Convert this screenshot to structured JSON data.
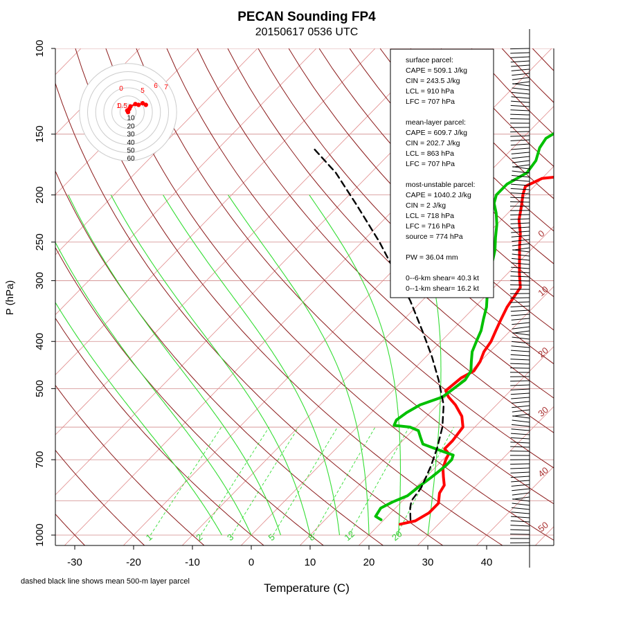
{
  "chart_data": {
    "type": "line",
    "title": "PECAN Sounding FP4",
    "subtitle": "20150617 0536 UTC",
    "xlabel": "Temperature (C)",
    "ylabel": "P (hPa)",
    "footnote": "dashed black line shows mean 500-m layer parcel",
    "xlim": [
      -35,
      45
    ],
    "ylim_hpa": [
      1050,
      100
    ],
    "log_pressure_axis": true,
    "x_ticks": [
      "-30",
      "-20",
      "-10",
      "0",
      "10",
      "20",
      "30",
      "40"
    ],
    "x_tick_values": [
      -30,
      -20,
      -10,
      0,
      10,
      20,
      30,
      40
    ],
    "y_ticks": [
      "100",
      "150",
      "200",
      "250",
      "300",
      "400",
      "500",
      "700",
      "1000"
    ],
    "y_tick_values": [
      100,
      150,
      200,
      250,
      300,
      400,
      500,
      700,
      1000
    ],
    "grid": true,
    "isotherm_labels": [
      "0",
      "10",
      "20",
      "30",
      "40",
      "50"
    ],
    "isotherm_label_values": [
      0,
      10,
      20,
      30,
      40,
      50
    ],
    "mixing_ratio_labels": [
      "1",
      "2",
      "3",
      "5",
      "8",
      "12",
      "20"
    ],
    "mixing_ratio_label_values": [
      1,
      2,
      3,
      5,
      8,
      12,
      20
    ],
    "hodograph": {
      "ring_labels": [
        "10",
        "20",
        "30",
        "40",
        "50",
        "60"
      ],
      "ring_values": [
        10,
        20,
        30,
        40,
        50,
        60
      ],
      "point_labels": [
        "0",
        "1",
        "5",
        "6",
        "7",
        "0.5"
      ],
      "points_kt": [
        [
          0,
          0
        ],
        [
          -1,
          2
        ],
        [
          1.5,
          4
        ],
        [
          3,
          7
        ],
        [
          9,
          10
        ],
        [
          13,
          9
        ],
        [
          18,
          11
        ],
        [
          22,
          9
        ]
      ]
    },
    "info_box": [
      "surface parcel:",
      "CAPE = 509.1 J/kg",
      "CIN = 243.5 J/kg",
      "LCL = 910 hPa",
      "LFC = 707 hPa",
      "",
      "mean-layer parcel:",
      "CAPE = 609.7 J/kg",
      "CIN = 202.7 J/kg",
      "LCL = 863 hPa",
      "LFC = 707 hPa",
      "",
      "most-unstable parcel:",
      "CAPE = 1040.2 J/kg",
      "CIN = 2 J/kg",
      "LCL = 718 hPa",
      "LFC = 716 hPa",
      "source = 774 hPa",
      "",
      "PW =  36.04 mm",
      "",
      "0--6-km shear= 40.3 kt",
      "0--1-km shear= 16.2 kt"
    ],
    "series": [
      {
        "name": "temperature",
        "color": "#ff0000",
        "points": [
          [
            23.5,
            950
          ],
          [
            25.5,
            935
          ],
          [
            26.5,
            900
          ],
          [
            26.5,
            860
          ],
          [
            25.0,
            820
          ],
          [
            24.5,
            790
          ],
          [
            23.0,
            760
          ],
          [
            21.5,
            730
          ],
          [
            20.5,
            700
          ],
          [
            20.0,
            680
          ],
          [
            18.5,
            665
          ],
          [
            18.5,
            640
          ],
          [
            18.0,
            600
          ],
          [
            16.0,
            570
          ],
          [
            13.0,
            540
          ],
          [
            10.5,
            520
          ],
          [
            9.0,
            505
          ],
          [
            9.5,
            475
          ],
          [
            10.5,
            460
          ],
          [
            10.0,
            440
          ],
          [
            9.0,
            420
          ],
          [
            8.5,
            400
          ],
          [
            7.5,
            380
          ],
          [
            6.5,
            360
          ],
          [
            5.5,
            340
          ],
          [
            4.5,
            310
          ],
          [
            2.0,
            290
          ],
          [
            -0.5,
            270
          ],
          [
            -2.5,
            255
          ],
          [
            -4.5,
            240
          ],
          [
            -7.0,
            225
          ],
          [
            -9.0,
            210
          ],
          [
            -10.5,
            200
          ],
          [
            -11.5,
            192
          ],
          [
            -10.0,
            185
          ],
          [
            -5.0,
            182
          ],
          [
            -4.0,
            175
          ],
          [
            -4.5,
            165
          ],
          [
            -5.0,
            155
          ],
          [
            -4.5,
            150
          ],
          [
            -1.0,
            145
          ],
          [
            3.0,
            140
          ],
          [
            6.0,
            132
          ],
          [
            6.0,
            125
          ],
          [
            5.0,
            115
          ],
          [
            5.5,
            108
          ],
          [
            7.0,
            104
          ],
          [
            8.5,
            101
          ],
          [
            9.0,
            100
          ]
        ]
      },
      {
        "name": "dewpoint",
        "color": "#00c000",
        "points": [
          [
            19.5,
            930
          ],
          [
            18.0,
            915
          ],
          [
            17.5,
            880
          ],
          [
            18.5,
            855
          ],
          [
            20.0,
            830
          ],
          [
            20.5,
            790
          ],
          [
            21.0,
            760
          ],
          [
            21.5,
            720
          ],
          [
            21.5,
            700
          ],
          [
            21.0,
            685
          ],
          [
            18.0,
            670
          ],
          [
            16.0,
            660
          ],
          [
            14.0,
            650
          ],
          [
            12.5,
            630
          ],
          [
            11.0,
            610
          ],
          [
            9.0,
            600
          ],
          [
            6.0,
            595
          ],
          [
            5.5,
            580
          ],
          [
            6.0,
            560
          ],
          [
            7.0,
            540
          ],
          [
            9.5,
            520
          ],
          [
            10.0,
            500
          ],
          [
            10.5,
            480
          ],
          [
            10.0,
            460
          ],
          [
            8.5,
            440
          ],
          [
            7.0,
            420
          ],
          [
            6.0,
            400
          ],
          [
            5.0,
            380
          ],
          [
            3.5,
            360
          ],
          [
            2.0,
            340
          ],
          [
            0.0,
            320
          ],
          [
            -2.0,
            300
          ],
          [
            -4.0,
            280
          ],
          [
            -6.0,
            260
          ],
          [
            -8.0,
            245
          ],
          [
            -10.0,
            230
          ],
          [
            -12.0,
            218
          ],
          [
            -14.0,
            208
          ],
          [
            -15.0,
            200
          ],
          [
            -15.0,
            190
          ],
          [
            -13.5,
            180
          ],
          [
            -14.0,
            170
          ],
          [
            -15.5,
            160
          ],
          [
            -16.0,
            153
          ],
          [
            -15.0,
            147
          ],
          [
            -13.0,
            140
          ],
          [
            -11.5,
            132
          ],
          [
            -11.0,
            125
          ],
          [
            -11.5,
            115
          ],
          [
            -10.5,
            108
          ],
          [
            -8.5,
            103
          ],
          [
            -7.5,
            100
          ]
        ]
      },
      {
        "name": "parcel",
        "color": "#000000",
        "points": [
          [
            24.5,
            930
          ],
          [
            22.5,
            880
          ],
          [
            21.5,
            850
          ],
          [
            21.0,
            800
          ],
          [
            19.0,
            720
          ],
          [
            17.0,
            660
          ],
          [
            14.5,
            600
          ],
          [
            11.0,
            540
          ],
          [
            6.0,
            480
          ],
          [
            1.0,
            430
          ],
          [
            -5.0,
            380
          ],
          [
            -12.0,
            330
          ],
          [
            -19.0,
            290
          ],
          [
            -27.0,
            250
          ],
          [
            -37.0,
            210
          ],
          [
            -46.0,
            180
          ],
          [
            -54.0,
            160
          ]
        ]
      }
    ]
  }
}
